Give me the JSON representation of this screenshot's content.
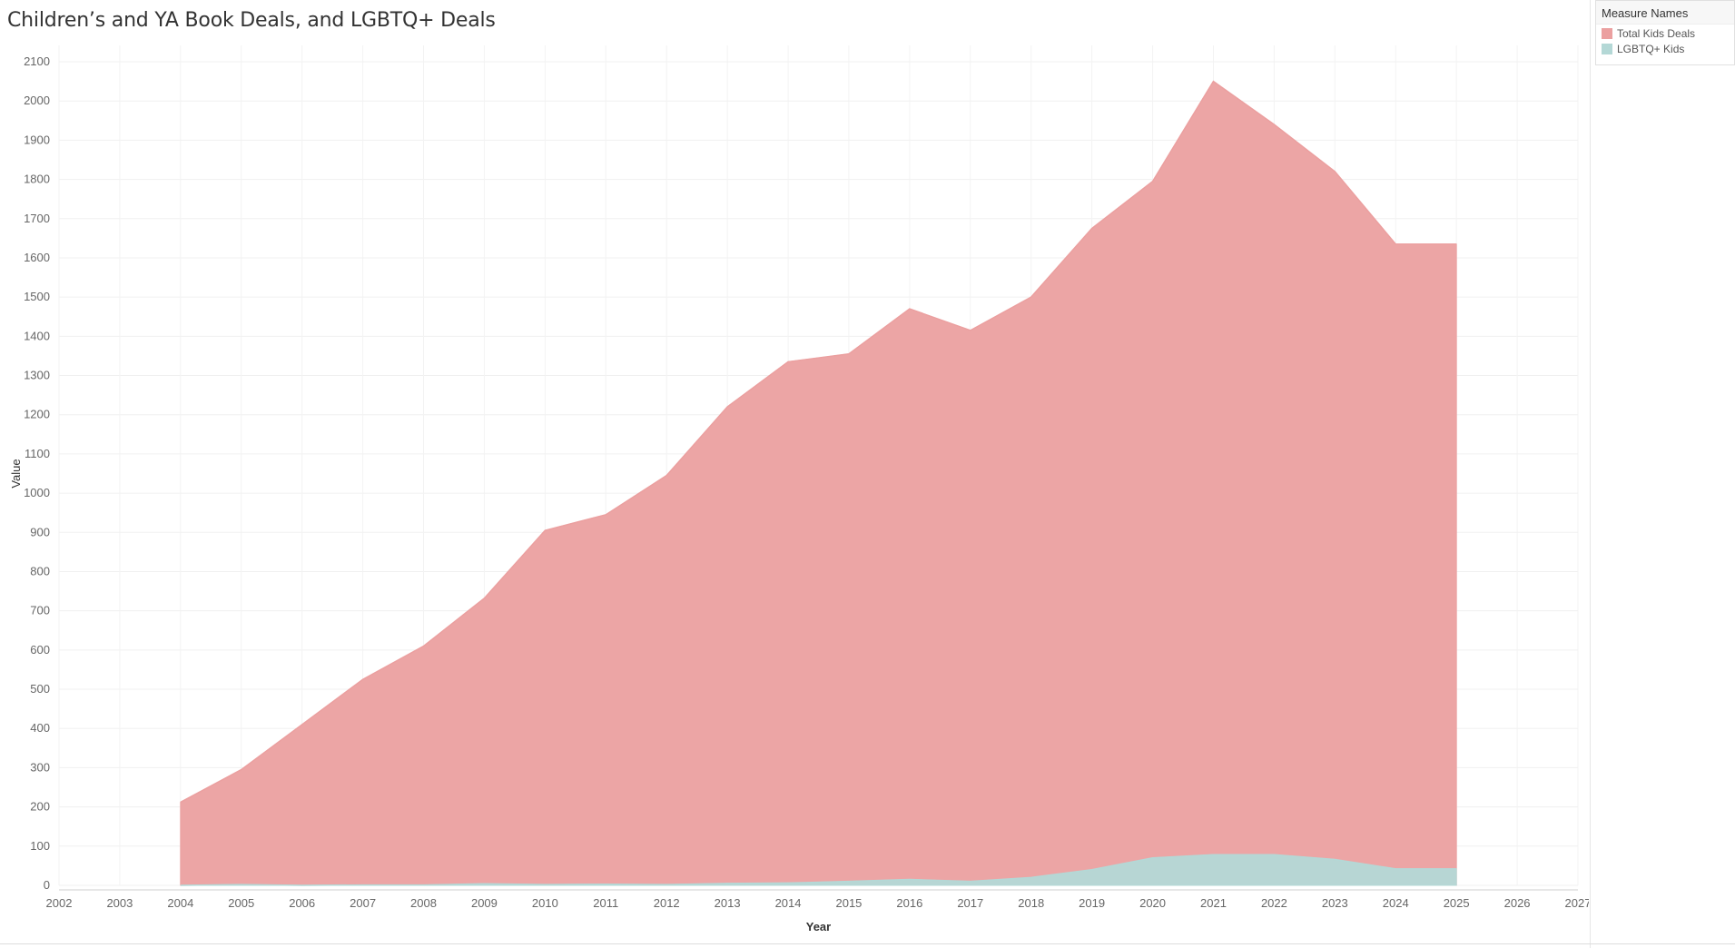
{
  "title": "Children’s and YA Book Deals, and LGBTQ+ Deals",
  "legend": {
    "header": "Measure Names",
    "items": [
      {
        "label": "Total Kids Deals",
        "color": "#eba0a0"
      },
      {
        "label": "LGBTQ+ Kids",
        "color": "#b4d8d6"
      }
    ]
  },
  "chart_data": {
    "type": "area",
    "xlabel": "Year",
    "ylabel": "Value",
    "xlim": [
      2002,
      2027
    ],
    "ylim": [
      0,
      2100
    ],
    "x_ticks": [
      2002,
      2003,
      2004,
      2005,
      2006,
      2007,
      2008,
      2009,
      2010,
      2011,
      2012,
      2013,
      2014,
      2015,
      2016,
      2017,
      2018,
      2019,
      2020,
      2021,
      2022,
      2023,
      2024,
      2025,
      2026,
      2027
    ],
    "y_ticks": [
      0,
      100,
      200,
      300,
      400,
      500,
      600,
      700,
      800,
      900,
      1000,
      1100,
      1200,
      1300,
      1400,
      1500,
      1600,
      1700,
      1800,
      1900,
      2000,
      2100
    ],
    "x": [
      2004,
      2005,
      2006,
      2007,
      2008,
      2009,
      2010,
      2011,
      2012,
      2013,
      2014,
      2015,
      2016,
      2017,
      2018,
      2019,
      2020,
      2021,
      2022,
      2023,
      2024,
      2025
    ],
    "series": [
      {
        "name": "Total Kids Deals",
        "color": "#eba0a0",
        "values": [
          212,
          295,
          410,
          525,
          610,
          732,
          905,
          945,
          1045,
          1220,
          1335,
          1355,
          1470,
          1415,
          1500,
          1675,
          1795,
          2050,
          1940,
          1820,
          1635,
          1635
        ]
      },
      {
        "name": "LGBTQ+ Kids",
        "color": "#b4d8d6",
        "values": [
          0,
          2,
          0,
          1,
          1,
          4,
          2,
          3,
          2,
          5,
          6,
          10,
          15,
          10,
          20,
          40,
          70,
          78,
          78,
          66,
          42,
          42
        ]
      }
    ],
    "grid": true,
    "legend_position": "top-right"
  }
}
